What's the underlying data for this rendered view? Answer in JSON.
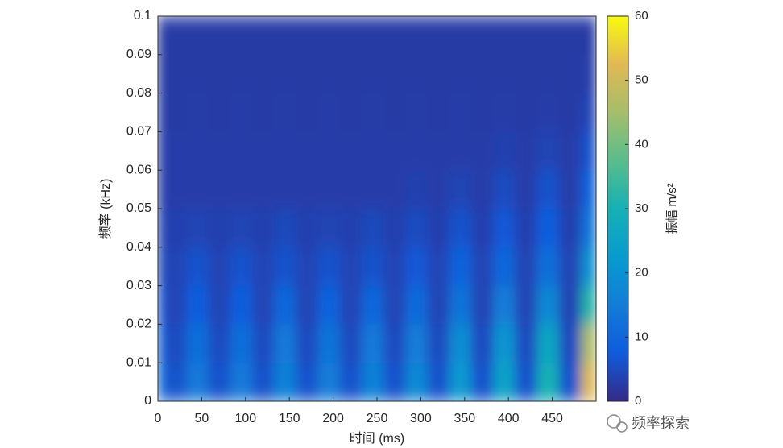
{
  "chart_data": {
    "type": "heatmap",
    "xlabel": "时间 (ms)",
    "ylabel": "频率 (kHz)",
    "colorbar_label": "振幅 m/s²",
    "watermark": "频率探索",
    "xlim": [
      0,
      500
    ],
    "xticks": [
      0,
      50,
      100,
      150,
      200,
      250,
      300,
      350,
      400,
      450
    ],
    "ylim": [
      0,
      0.1
    ],
    "yticks": [
      0,
      0.01,
      0.02,
      0.03,
      0.04,
      0.05,
      0.06,
      0.07,
      0.08,
      0.09,
      0.1
    ],
    "clim": [
      0,
      60
    ],
    "cticks": [
      0,
      10,
      20,
      30,
      40,
      50,
      60
    ],
    "colormap": [
      "#352a87",
      "#0f5cdd",
      "#127dd8",
      "#079ccf",
      "#15b1b4",
      "#59bd8c",
      "#a5be6b",
      "#e1b952",
      "#f9fb0e"
    ],
    "xbins": [
      0,
      7.5,
      32.5,
      57.5,
      82.5,
      107.5,
      132.5,
      157.5,
      182.5,
      207.5,
      232.5,
      257.5,
      282.5,
      307.5,
      332.5,
      357.5,
      382.5,
      407.5,
      432.5,
      457.5,
      482.5,
      500
    ],
    "ybins": [
      0,
      0.01,
      0.02,
      0.03,
      0.04,
      0.05,
      0.06,
      0.07,
      0.08,
      0.09,
      0.1
    ],
    "values": [
      [
        12,
        6,
        14,
        6,
        14,
        6,
        16,
        6,
        15,
        6,
        16,
        6,
        18,
        6,
        22,
        6,
        25,
        6,
        30,
        6,
        52
      ],
      [
        10,
        5,
        12,
        5,
        12,
        5,
        14,
        5,
        13,
        5,
        14,
        5,
        15,
        5,
        19,
        5,
        21,
        5,
        26,
        5,
        46
      ],
      [
        7,
        4,
        8,
        4,
        8,
        4,
        10,
        4,
        9,
        4,
        10,
        4,
        11,
        4,
        13,
        4,
        15,
        4,
        18,
        4,
        32
      ],
      [
        5,
        4,
        6,
        4,
        6,
        4,
        6,
        4,
        6,
        4,
        6,
        4,
        7,
        4,
        9,
        4,
        10,
        4,
        12,
        4,
        20
      ],
      [
        4,
        3.5,
        4,
        3.5,
        4,
        3.5,
        4.5,
        3.5,
        4,
        3.5,
        4.5,
        3.5,
        5,
        3.5,
        6,
        3.5,
        7,
        3.5,
        8,
        3.5,
        13
      ],
      [
        3,
        3,
        3,
        3,
        3,
        3,
        3,
        3,
        3,
        3,
        3,
        3,
        3.5,
        3,
        4,
        3,
        5,
        3,
        6,
        3,
        9
      ],
      [
        3,
        3,
        3,
        3,
        3,
        3,
        3,
        3,
        3,
        3,
        3,
        3,
        3,
        3,
        3,
        3,
        3.5,
        3,
        4,
        3,
        6
      ],
      [
        3,
        2.5,
        3,
        2.5,
        3,
        2.5,
        3,
        2.5,
        3,
        2.5,
        3,
        2.5,
        3,
        2.5,
        3,
        2.5,
        3,
        2.5,
        3,
        2.5,
        4
      ],
      [
        2.5,
        2.5,
        2.5,
        2.5,
        2.5,
        2.5,
        2.5,
        2.5,
        2.5,
        2.5,
        2.5,
        2.5,
        2.5,
        2.5,
        2.5,
        2.5,
        2.5,
        2.5,
        2.5,
        2.5,
        3
      ],
      [
        2.5,
        2.5,
        2.5,
        2.5,
        2.5,
        2.5,
        2.5,
        2.5,
        2.5,
        2.5,
        2.5,
        2.5,
        2.5,
        2.5,
        2.5,
        2.5,
        2.5,
        2.5,
        2.5,
        2.5,
        2.5
      ]
    ]
  }
}
